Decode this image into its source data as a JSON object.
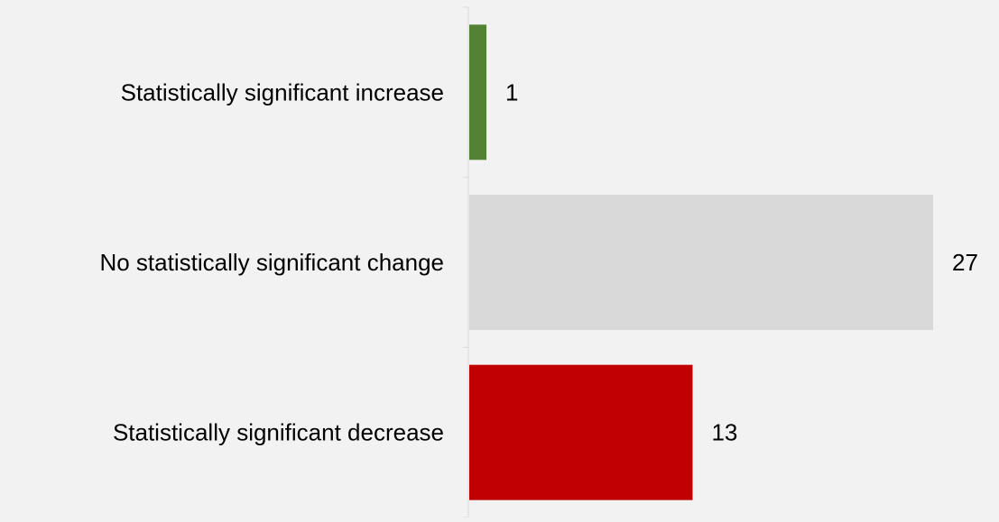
{
  "chart_data": {
    "type": "bar",
    "orientation": "horizontal",
    "categories": [
      "Statistically significant increase",
      "No statistically significant change",
      "Statistically significant decrease"
    ],
    "values": [
      1,
      27,
      13
    ],
    "data_labels": [
      "1",
      "27",
      "13"
    ],
    "colors": [
      "#548235",
      "#d9d9d9",
      "#c00000"
    ],
    "title": "",
    "xlabel": "",
    "ylabel": "",
    "xlim": [
      0,
      27
    ],
    "grid": false,
    "legend": "none"
  },
  "colors": {
    "background": "#f2f2f2",
    "axis": "#d9d9d9",
    "text": "#000000"
  }
}
